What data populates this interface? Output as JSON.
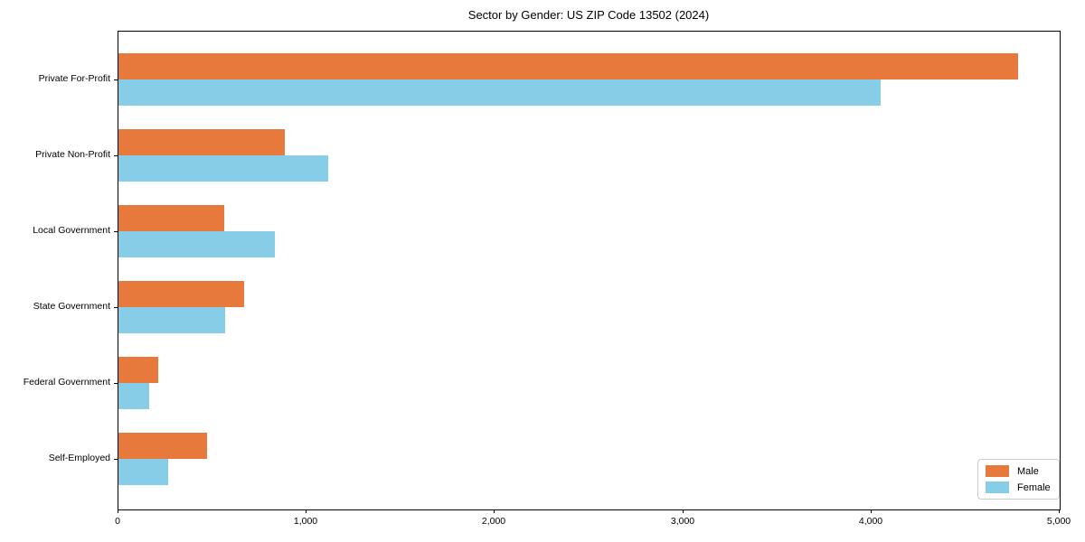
{
  "chart_data": {
    "type": "bar",
    "orientation": "horizontal",
    "title": "Sector by Gender: US ZIP Code 13502 (2024)",
    "categories": [
      "Private For-Profit",
      "Private Non-Profit",
      "Local Government",
      "State Government",
      "Federal Government",
      "Self-Employed"
    ],
    "series": [
      {
        "name": "Male",
        "color": "#e8793c",
        "values": [
          4780,
          885,
          560,
          670,
          210,
          470
        ]
      },
      {
        "name": "Female",
        "color": "#87cde8",
        "values": [
          4050,
          1115,
          830,
          565,
          165,
          265
        ]
      }
    ],
    "xlabel": "",
    "ylabel": "",
    "xlim": [
      0,
      5000
    ],
    "x_ticks": [
      "0",
      "1,000",
      "2,000",
      "3,000",
      "4,000",
      "5,000"
    ],
    "x_tick_values": [
      0,
      1000,
      2000,
      3000,
      4000,
      5000
    ],
    "grid": false,
    "legend_position": "lower right",
    "plot_border_color": "#000000",
    "background_color": "#ffffff"
  }
}
